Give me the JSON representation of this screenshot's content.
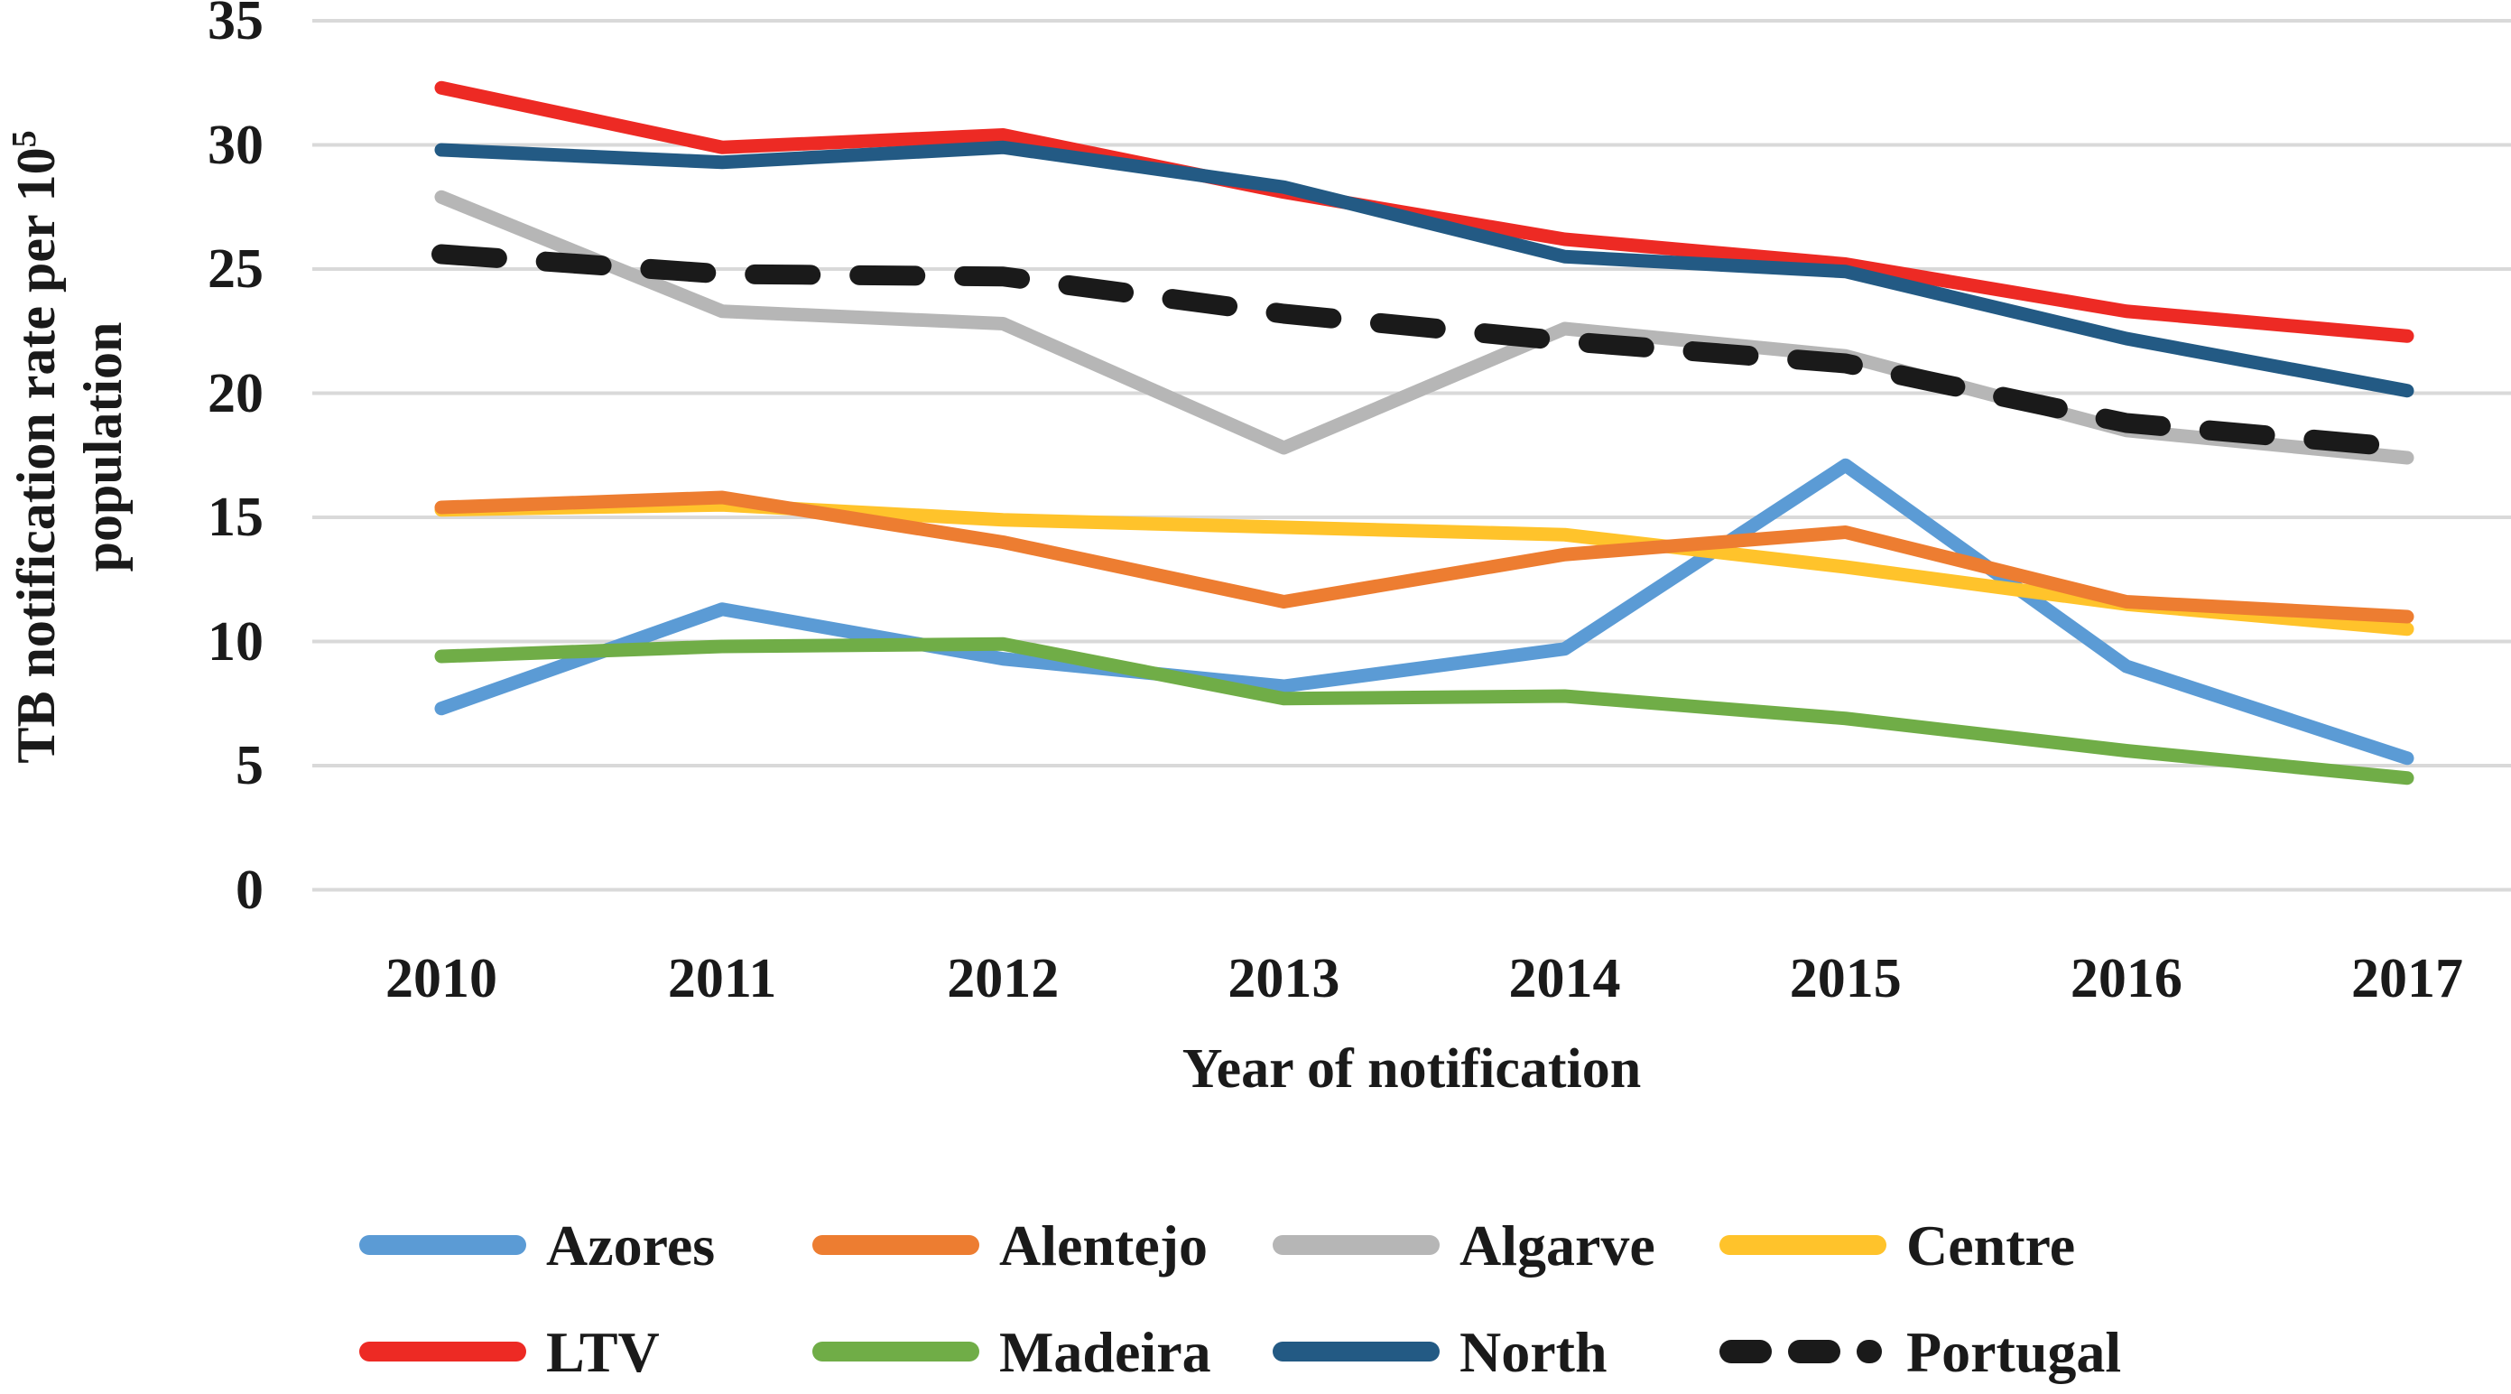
{
  "chart_data": {
    "type": "line",
    "title": "",
    "x_title": "Year of notification",
    "y_title": {
      "line1": "TB notification rate per 10",
      "superscript": "5",
      "line2": "population"
    },
    "categories": [
      "2010",
      "2011",
      "2012",
      "2013",
      "2014",
      "2015",
      "2016",
      "2017"
    ],
    "y_ticks": [
      0,
      5,
      10,
      15,
      20,
      25,
      30,
      35
    ],
    "ylim": [
      0,
      35
    ],
    "grid": "horizontal",
    "legend_position": "bottom",
    "gridline_color": "#D9D9D9",
    "background_color": "#FFFFFF",
    "series": [
      {
        "name": "Azores",
        "color": "#5B9BD5",
        "dashed": false,
        "values": [
          7.3,
          11.3,
          9.3,
          8.2,
          9.7,
          17.1,
          9.0,
          5.3
        ]
      },
      {
        "name": "Alentejo",
        "color": "#ED7D31",
        "dashed": false,
        "values": [
          15.4,
          15.8,
          14.0,
          11.6,
          13.5,
          14.4,
          11.6,
          11.0
        ]
      },
      {
        "name": "Algarve",
        "color": "#B6B6B6",
        "dashed": false,
        "values": [
          27.9,
          23.3,
          22.8,
          17.8,
          22.6,
          21.5,
          18.5,
          17.4
        ]
      },
      {
        "name": "Centre",
        "color": "#FFC32B",
        "dashed": false,
        "values": [
          15.3,
          15.5,
          14.9,
          14.6,
          14.3,
          13.0,
          11.5,
          10.5
        ]
      },
      {
        "name": "LTV",
        "color": "#ED2A24",
        "dashed": false,
        "values": [
          32.3,
          29.9,
          30.4,
          28.1,
          26.2,
          25.2,
          23.3,
          22.3
        ]
      },
      {
        "name": "Madeira",
        "color": "#70AD47",
        "dashed": false,
        "values": [
          9.4,
          9.8,
          9.9,
          7.7,
          7.8,
          6.9,
          5.6,
          4.5
        ]
      },
      {
        "name": "North",
        "color": "#235A84",
        "dashed": false,
        "values": [
          29.8,
          29.3,
          29.9,
          28.3,
          25.5,
          24.9,
          22.2,
          20.1
        ]
      },
      {
        "name": "Portugal",
        "color": "#1A1A1A",
        "dashed": true,
        "values": [
          25.6,
          24.8,
          24.7,
          23.2,
          22.1,
          21.2,
          18.8,
          17.8
        ]
      }
    ]
  }
}
